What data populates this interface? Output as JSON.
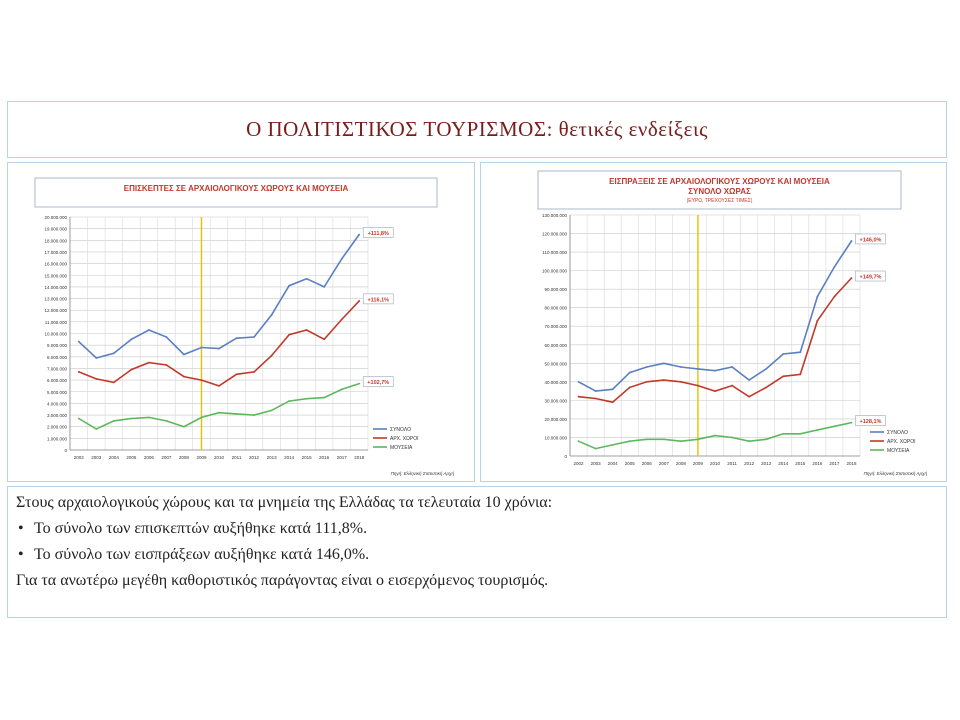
{
  "slide_title": "Ο ΠΟΛΙΤΙΣΤΙΚΟΣ ΤΟΥΡΙΣΜΟΣ: θετικές ενδείξεις",
  "text": {
    "intro": "Στους αρχαιολογικούς χώρους και τα μνημεία της Ελλάδας τα τελευταία 10 χρόνια:",
    "bullet1": "Το σύνολο των επισκεπτών αυξήθηκε κατά 111,8%.",
    "bullet2": "Το σύνολο των εισπράξεων αυξήθηκε κατά 146,0%.",
    "conclusion": "Για τα ανωτέρω μεγέθη καθοριστικός παράγοντας είναι ο εισερχόμενος τουρισμός."
  },
  "chart_data": [
    {
      "type": "line",
      "title": "ΕΠΙΣΚΕΠΤΕΣ ΣΕ ΑΡΧΑΙΟΛΟΓΙΚΟΥΣ ΧΩΡΟΥΣ ΚΑΙ ΜΟΥΣΕΙΑ",
      "subtitle": "",
      "source": "Πηγή: Ελληνική Στατιστική Αρχή",
      "x": [
        "2002",
        "2003",
        "2004",
        "2005",
        "2006",
        "2007",
        "2008",
        "2009",
        "2010",
        "2011",
        "2012",
        "2013",
        "2014",
        "2015",
        "2016",
        "2017",
        "2018"
      ],
      "ylim": [
        0,
        20000000
      ],
      "ystep": 1000000,
      "ytick_labels": [
        "0",
        "1.000.000",
        "2.000.000",
        "3.000.000",
        "4.000.000",
        "5.000.000",
        "6.000.000",
        "7.000.000",
        "8.000.000",
        "9.000.000",
        "10.000.000",
        "11.000.000",
        "12.000.000",
        "13.000.000",
        "14.000.000",
        "15.000.000",
        "16.000.000",
        "17.000.000",
        "18.000.000",
        "19.000.000",
        "20.000.000"
      ],
      "vline_x": "2009",
      "series": [
        {
          "name": "ΣΥΝΟΛΟ",
          "color": "#5b7fc0",
          "values": [
            9300000,
            7900000,
            8300000,
            9500000,
            10300000,
            9700000,
            8200000,
            8800000,
            8700000,
            9600000,
            9700000,
            11600000,
            14100000,
            14700000,
            14000000,
            16400000,
            18500000
          ],
          "end_label": "+111,8%"
        },
        {
          "name": "ΑΡΧ. ΧΩΡΟΙ",
          "color": "#c0392b",
          "values": [
            6700000,
            6100000,
            5800000,
            6900000,
            7500000,
            7300000,
            6300000,
            6000000,
            5500000,
            6500000,
            6700000,
            8100000,
            9900000,
            10300000,
            9500000,
            11200000,
            12800000
          ],
          "end_label": "+116,1%"
        },
        {
          "name": "ΜΟΥΣΕΙΑ",
          "color": "#5cb85c",
          "values": [
            2700000,
            1800000,
            2500000,
            2700000,
            2800000,
            2500000,
            2000000,
            2800000,
            3200000,
            3100000,
            3000000,
            3400000,
            4200000,
            4400000,
            4500000,
            5200000,
            5700000
          ],
          "end_label": "+102,7%"
        }
      ]
    },
    {
      "type": "line",
      "title": "ΕΙΣΠΡΑΞΕΙΣ ΣΕ ΑΡΧΑΙΟΛΟΓΙΚΟΥΣ ΧΩΡΟΥΣ ΚΑΙ ΜΟΥΣΕΙΑ",
      "title2": "ΣΥΝΟΛΟ ΧΩΡΑΣ",
      "subtitle": "(ΕΥΡΩ, ΤΡΕΧΟΥΣΕΣ ΤΙΜΕΣ)",
      "source": "Πηγή: Ελληνική Στατιστική Αρχή",
      "x": [
        "2002",
        "2003",
        "2004",
        "2005",
        "2006",
        "2007",
        "2008",
        "2009",
        "2010",
        "2011",
        "2012",
        "2013",
        "2014",
        "2015",
        "2016",
        "2017",
        "2018"
      ],
      "ylim": [
        0,
        130000000
      ],
      "ystep": 10000000,
      "ytick_labels": [
        "0",
        "10.000.000",
        "20.000.000",
        "30.000.000",
        "40.000.000",
        "50.000.000",
        "60.000.000",
        "70.000.000",
        "80.000.000",
        "90.000.000",
        "100.000.000",
        "110.000.000",
        "120.000.000",
        "130.000.000"
      ],
      "vline_x": "2009",
      "series": [
        {
          "name": "ΣΥΝΟΛΟ",
          "color": "#5b7fc0",
          "values": [
            40000000,
            35000000,
            36000000,
            45000000,
            48000000,
            50000000,
            48000000,
            47000000,
            46000000,
            48000000,
            41000000,
            47000000,
            55000000,
            56000000,
            86000000,
            102000000,
            116000000
          ],
          "end_label": "+146,0%"
        },
        {
          "name": "ΑΡΧ. ΧΩΡΟΙ",
          "color": "#c0392b",
          "values": [
            32000000,
            31000000,
            29000000,
            37000000,
            40000000,
            41000000,
            40000000,
            38000000,
            35000000,
            38000000,
            32000000,
            37000000,
            43000000,
            44000000,
            73000000,
            86000000,
            96000000
          ],
          "end_label": "+149,7%"
        },
        {
          "name": "ΜΟΥΣΕΙΑ",
          "color": "#5cb85c",
          "values": [
            8000000,
            4000000,
            6000000,
            8000000,
            9000000,
            9000000,
            8000000,
            9000000,
            11000000,
            10000000,
            8000000,
            9000000,
            12000000,
            12000000,
            14000000,
            16000000,
            18000000
          ],
          "end_label": "+128,1%"
        }
      ]
    }
  ]
}
